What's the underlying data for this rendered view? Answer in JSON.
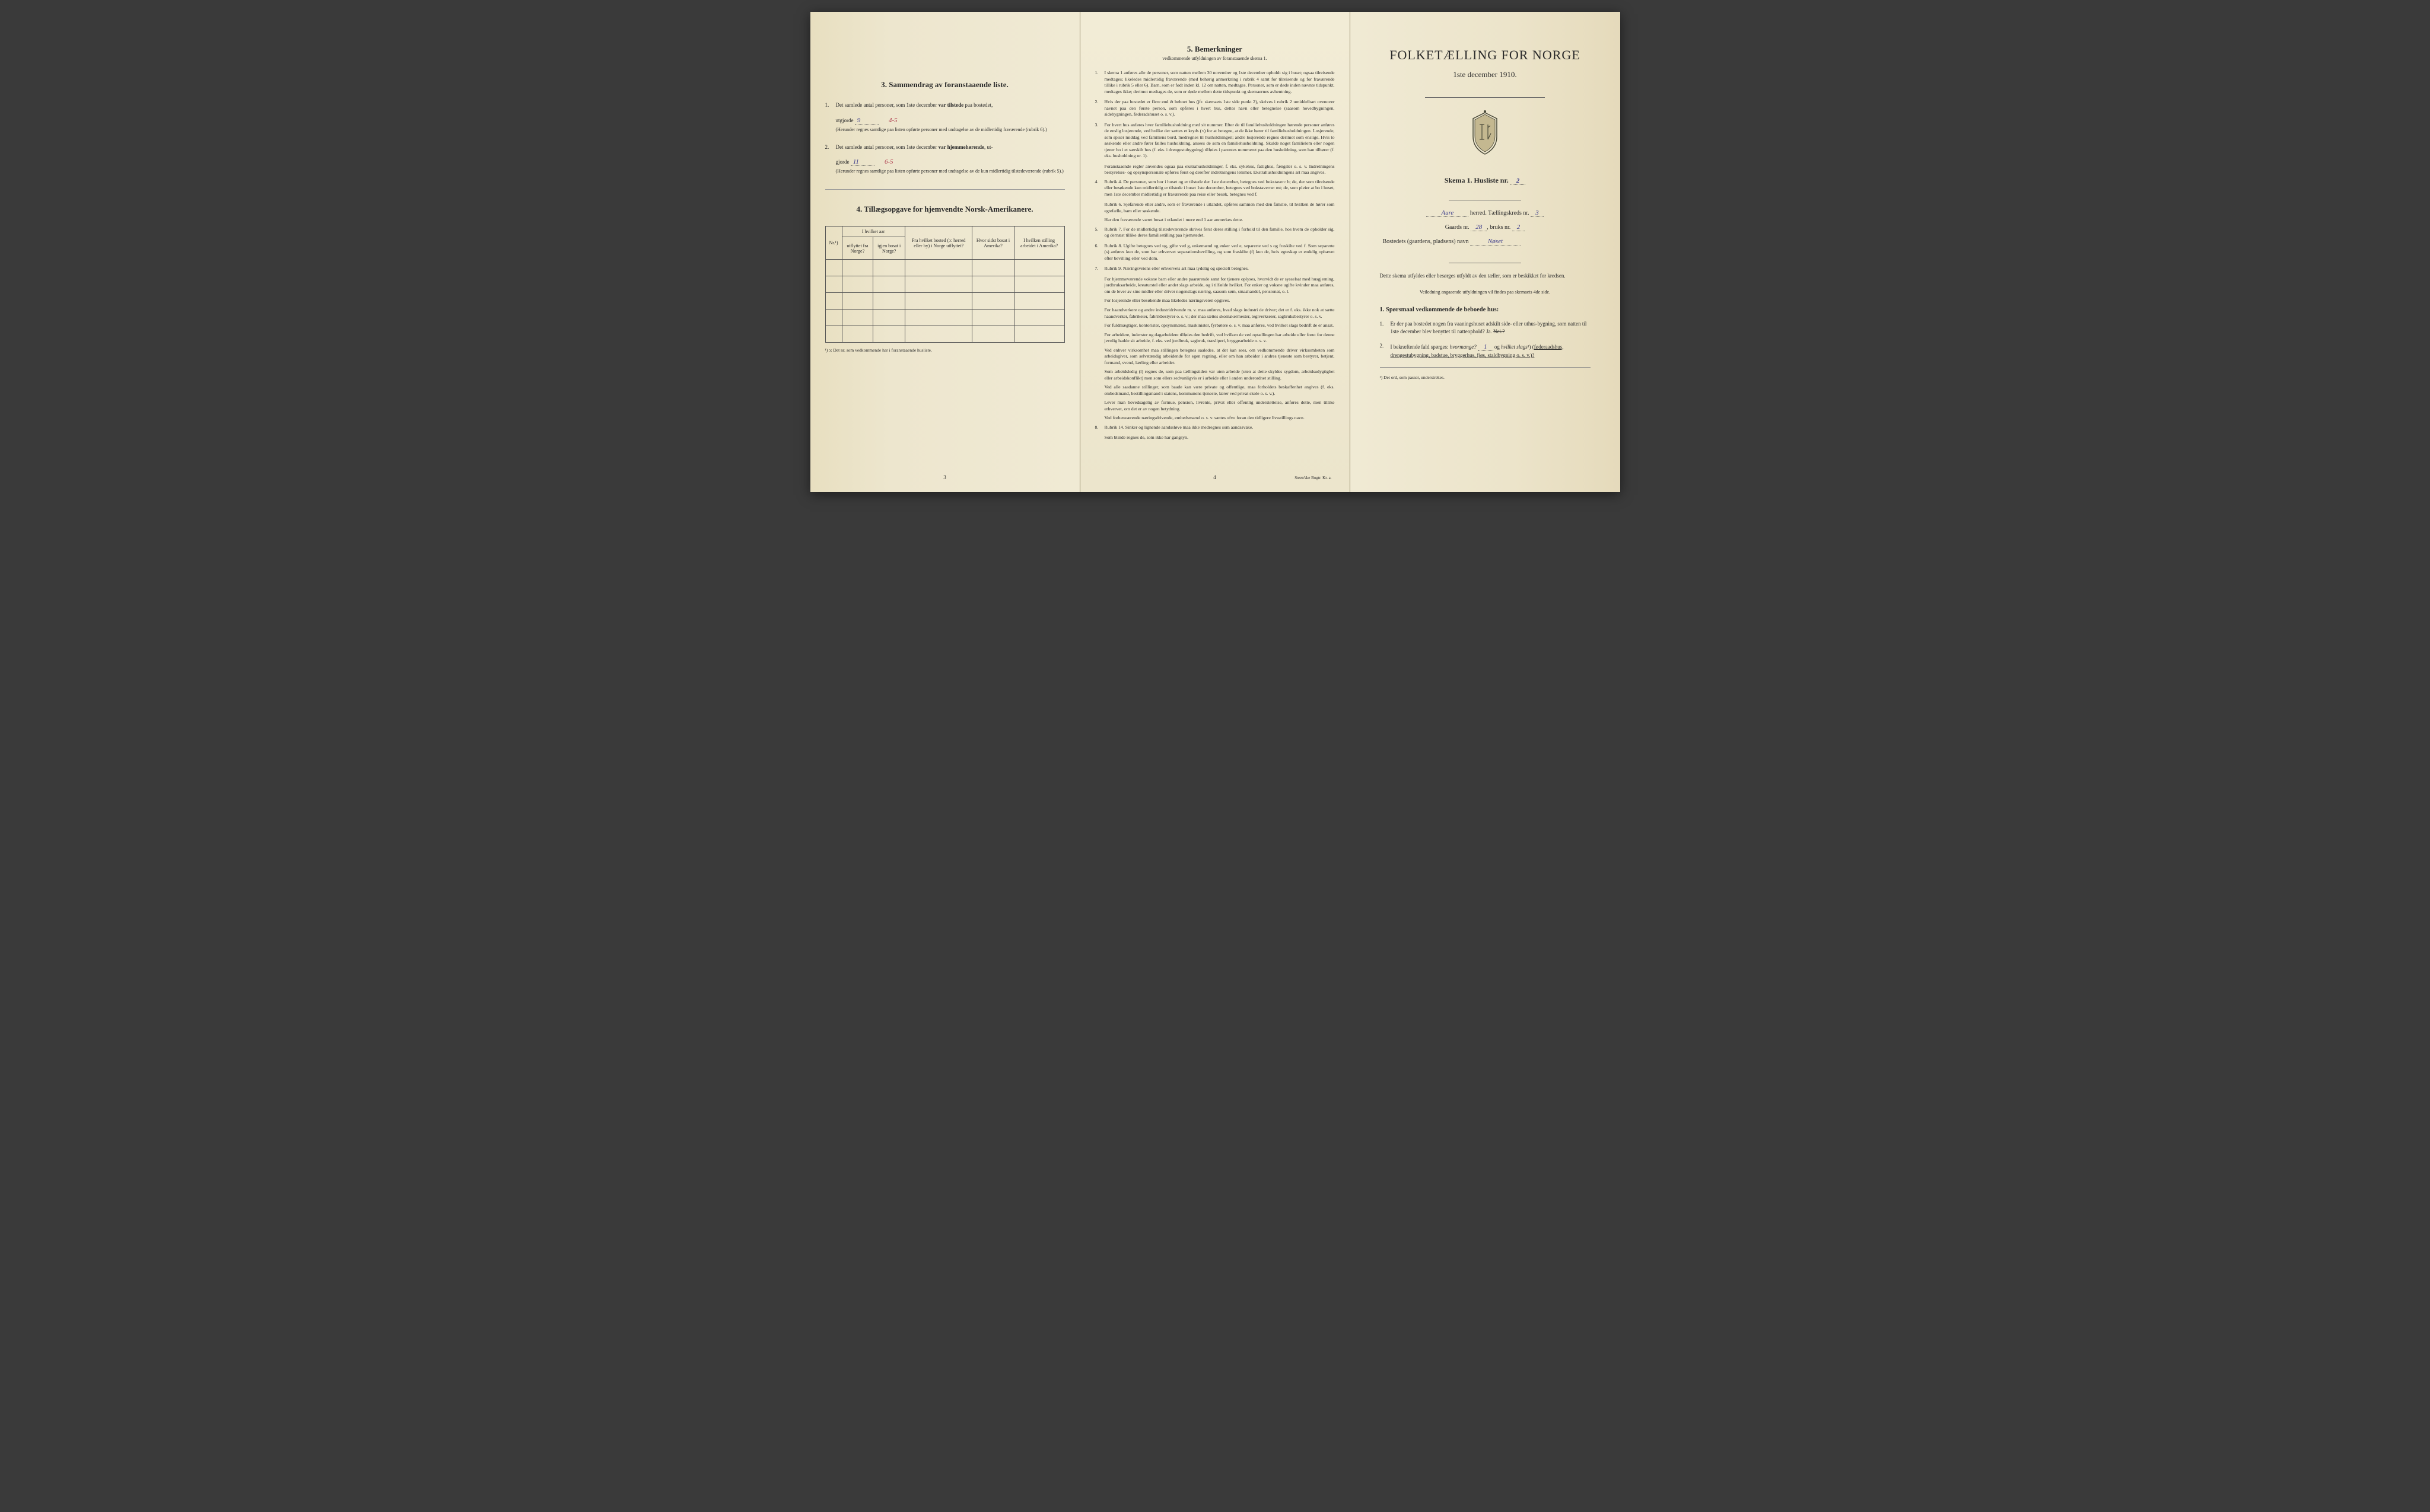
{
  "colors": {
    "paper": "#ede6ce",
    "paper_edge": "#e5dabb",
    "text": "#2a2a2a",
    "handwriting_blue": "#3b3b8b",
    "handwriting_red": "#b04050",
    "border": "#555555"
  },
  "left_page": {
    "section3": {
      "title": "3.   Sammendrag av foranstaaende liste.",
      "item1": {
        "num": "1.",
        "text_before": "Det samlede antal personer, som 1ste december ",
        "text_bold": "var tilstede",
        "text_after": " paa bostedet,",
        "line2_before": "utgjorde ",
        "handwritten_main": "9",
        "handwritten_sub": "4-5",
        "paren": "(Herunder regnes samtlige paa listen opførte personer med undtagelse av de midlertidig fraværende (rubrik 6).)"
      },
      "item2": {
        "num": "2.",
        "text_before": "Det samlede antal personer, som 1ste december ",
        "text_bold": "var hjemmehørende",
        "text_after": ", ut-",
        "line2_before": "gjorde ",
        "handwritten_main": "11",
        "handwritten_sub": "6-5",
        "paren": "(Herunder regnes samtlige paa listen opførte personer med undtagelse av de kun midlertidig tilstedeværende (rubrik 5).)"
      }
    },
    "section4": {
      "title": "4.   Tillægsopgave for hjemvendte Norsk-Amerikanere.",
      "table": {
        "headers": {
          "col1": "Nr.¹)",
          "col2_top": "I hvilket aar",
          "col2a": "utflyttet fra Norge?",
          "col2b": "igjen bosat i Norge?",
          "col3": "Fra hvilket bosted (ɔ: herred eller by) i Norge utflyttet?",
          "col4": "Hvor sidst bosat i Amerika?",
          "col5": "I hvilken stilling arbeidet i Amerika?"
        },
        "empty_rows": 5
      },
      "footnote": "¹) ɔ: Det nr. som vedkommende har i foranstaaende husliste."
    },
    "page_number": "3"
  },
  "middle_page": {
    "title": "5.   Bemerkninger",
    "subtitle": "vedkommende utfyldningen av foranstaaende skema 1.",
    "items": [
      {
        "num": "1.",
        "text": "I skema 1 anføres alle de personer, som natten mellem 30 november og 1ste december opholdt sig i huset; ogsaa tilreisende medtages; likeledes midlertidig fraværende (med behørig anmerkning i rubrik 4 samt for tilreisende og for fraværende tillike i rubrik 5 eller 6). Barn, som er født inden kl. 12 om natten, medtages. Personer, som er døde inden nævnte tidspunkt, medtages ikke; derimot medtages de, som er døde mellem dette tidspunkt og skemaernes avhentning."
      },
      {
        "num": "2.",
        "text": "Hvis der paa bostedet er flere end ét beboet hus (jfr. skemaets 1ste side punkt 2), skrives i rubrik 2 umiddelbart ovenover navnet paa den første person, som opføres i hvert hus, dettes navn eller betegnelse (saasom hovedbygningen, sidebygningen, føderadshuset o. s. v.)."
      },
      {
        "num": "3.",
        "text": "For hvert hus anføres hver familiehusholdning med sit nummer. Efter de til familiehusholdningen hørende personer anføres de enslig losjerende, ved hvilke der sættes et kryds (×) for at betegne, at de ikke hører til familiehusholdningen. Losjerende, som spiser middag ved familiens bord, medregnes til husholdningen; andre losjerende regnes derimot som enslige. Hvis to søskende eller andre fører fælles husholdning, ansees de som en familiehusholdning. Skulde noget familielem eller nogen tjener bo i et særskilt hus (f. eks. i drengestubygning) tilføies i parentes nummeret paa den husholdning, som han tilhører (f. eks. husholdning nr. 1)."
      },
      {
        "num": "",
        "text": "Foranstaaende regler anvendes ogsaa paa ekstrahusholdninger, f. eks. sykehus, fattighus, fængsler o. s. v. Indretningens bestyrelses- og opsynspersonale opføres først og derefter indretningens lemmer. Ekstrahusholdningens art maa angives.",
        "indent": true
      },
      {
        "num": "4.",
        "text": "Rubrik 4. De personer, som bor i huset og er tilstede der 1ste december, betegnes ved bokstaven: b; de, der som tilreisende eller besøkende kun midlertidig er tilstede i huset 1ste december, betegnes ved bokstaverne: mt; de, som pleier at bo i huset, men 1ste december midlertidig er fraværende paa reise eller besøk, betegnes ved f."
      },
      {
        "num": "",
        "text": "Rubrik 6. Sjøfarende eller andre, som er fraværende i utlandet, opføres sammen med den familie, til hvilken de hører som egtefælle, barn eller søskende.",
        "indent": true
      },
      {
        "num": "",
        "text": "Har den fraværende været bosat i utlandet i mere end 1 aar anmerkes dette.",
        "indent": true
      },
      {
        "num": "5.",
        "text": "Rubrik 7. For de midlertidig tilstedeværende skrives først deres stilling i forhold til den familie, hos hvem de opholder sig, og dernæst tillike deres familiestilling paa hjemstedet."
      },
      {
        "num": "6.",
        "text": "Rubrik 8. Ugifte betegnes ved ug, gifte ved g, enkemænd og enker ved e, separerte ved s og fraskilte ved f. Som separerte (s) anføres kun de, som har erhvervet separationsbevilling, og som fraskilte (f) kun de, hvis egteskap er endelig ophævet efter bevilling eller ved dom."
      },
      {
        "num": "7.",
        "text": "Rubrik 9. Næringsveiens eller erhvervets art maa tydelig og specielt betegnes."
      },
      {
        "num": "",
        "text": "For hjemmeværende voksne barn eller andre paarørende samt for tjenere oplyses, hvorvidt de er sysselsat med husgjerning, jordbruksarbeide, kreaturstel eller andet slags arbeide, og i tilfælde hvilket. For enker og voksne ugifte kvinder maa anføres, om de lever av sine midler eller driver nogenslags næring, saasom søm, smaahandel, pensionat, o. l.",
        "indent": true
      },
      {
        "num": "",
        "text": "For losjerende eller besøkende maa likeledes næringsveien opgives.",
        "indent": true
      },
      {
        "num": "",
        "text": "For haandverkere og andre industridrivende m. v. maa anføres, hvad slags industri de driver; det er f. eks. ikke nok at sætte haandverker, fabrikeier, fabrikbestyrer o. s. v.; der maa sættes skomakermester, teglverkseier, sagbruksbestyrer o. s. v.",
        "indent": true
      },
      {
        "num": "",
        "text": "For fuldmægtiger, kontorister, opsynsmænd, maskinister, fyrbøtere o. s. v. maa anføres, ved hvilket slags bedrift de er ansat.",
        "indent": true
      },
      {
        "num": "",
        "text": "For arbeidere, inderster og dagarbeidere tilføies den bedrift, ved hvilken de ved optællingen har arbeide eller forut for denne jevnlig hadde sit arbeide, f. eks. ved jordbruk, sagbruk, træsliperi, bryggearbeide o. s. v.",
        "indent": true
      },
      {
        "num": "",
        "text": "Ved enhver virksomhet maa stillingen betegnes saaledes, at det kan sees, om vedkommende driver virksomheten som arbeidsgiver, som selvstændig arbeidende for egen regning, eller om han arbeider i andres tjeneste som bestyrer, betjent, formand, svend, lærling eller arbeider.",
        "indent": true
      },
      {
        "num": "",
        "text": "Som arbeidsledig (l) regnes de, som paa tællingstiden var uten arbeide (uten at dette skyldes sygdom, arbeidsudygtighet eller arbeidskonflikt) men som ellers sedvanligvis er i arbeide eller i anden underordnet stilling.",
        "indent": true
      },
      {
        "num": "",
        "text": "Ved alle saadanne stillinger, som baade kan være private og offentlige, maa forholdets beskaffenhet angives (f. eks. embedsmand, bestillingsmand i statens, kommunens tjeneste, lærer ved privat skole o. s. v.).",
        "indent": true
      },
      {
        "num": "",
        "text": "Lever man hovedsagelig av formue, pension, livrente, privat eller offentlig understøttelse, anføres dette, men tillike erhvervet, om det er av nogen betydning.",
        "indent": true
      },
      {
        "num": "",
        "text": "Ved forhenværende næringsdrivende, embedsmænd o. s. v. sættes «fv» foran den tidligere livsstillings navn.",
        "indent": true
      },
      {
        "num": "8.",
        "text": "Rubrik 14. Sinker og lignende aandssløve maa ikke medregnes som aandssvake."
      },
      {
        "num": "",
        "text": "Som blinde regnes de, som ikke har gangsyn.",
        "indent": true
      }
    ],
    "page_number": "4",
    "printer": "Steen'ske Bogtr.  Kr. a."
  },
  "right_page": {
    "main_title": "FOLKETÆLLING FOR NORGE",
    "date": "1ste december 1910.",
    "skema_label_before": "Skema 1.   Husliste nr. ",
    "skema_handwritten": "2",
    "herred_line": {
      "handwritten": "Aure",
      "label_mid": " herred.    Tællingskreds nr. ",
      "handwritten2": "3"
    },
    "gaards_line": {
      "label1": "Gaards nr. ",
      "hw1": "28",
      "label2": ",  bruks nr. ",
      "hw2": "2"
    },
    "bostedets": {
      "label": "Bostedets (gaardens, pladsens) navn ",
      "hw": "Nøset"
    },
    "instruction": "Dette skema utfyldes eller besørges utfyldt av den tæller, som er beskikket for kredsen.",
    "instruction_small": "Veiledning angaaende utfyldningen vil findes paa skemaets 4de side.",
    "section1_title": "1.   Spørsmaal vedkommende de beboede hus:",
    "q1": {
      "num": "1.",
      "text": "Er der paa bostedet nogen fra vaaningshuset adskilt side- eller uthus-bygning, som natten til 1ste december blev benyttet til natteophold?     Ja.    ",
      "nei": "Nei.?"
    },
    "q2": {
      "num": "2.",
      "text_before": "I bekræftende fald spørges: ",
      "italic1": "hvormange?",
      "hw": "1",
      "text_mid": "    og ",
      "italic2": "hvilket slags",
      "sup": "¹)",
      "text_after": " (føderaadshus, drengestubygning, badstue, bryggerhus, fjøs, staldbygning o. s. v.)?"
    },
    "footnote": "¹) Det ord, som passer, understrekes."
  }
}
